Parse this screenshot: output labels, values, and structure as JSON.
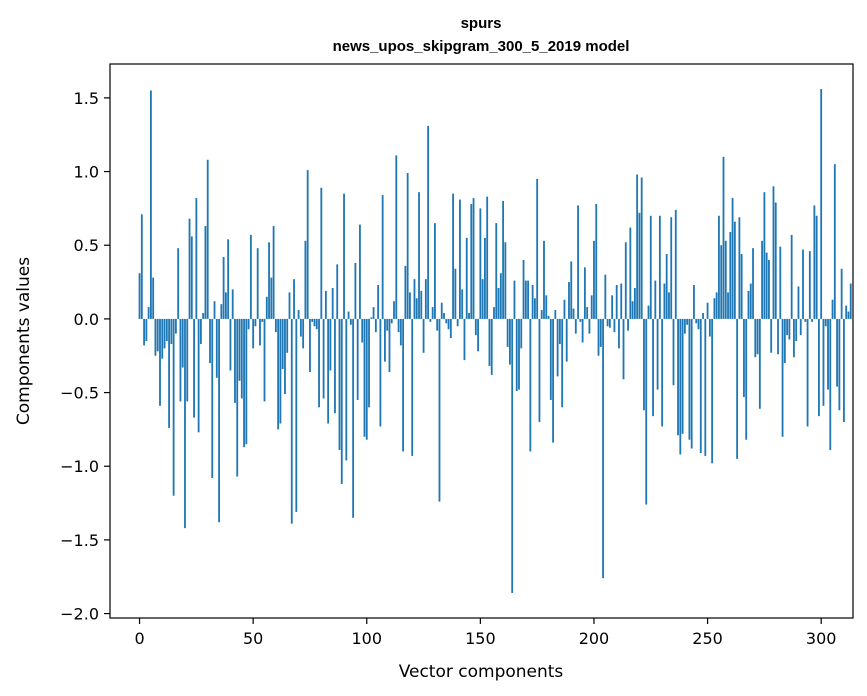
{
  "chart_data": {
    "type": "bar",
    "title": "spurs",
    "subtitle": "news_upos_skipgram_300_5_2019 model",
    "xlabel": "Vector components",
    "ylabel": "Components values",
    "xlim": [
      -13,
      314
    ],
    "ylim": [
      -2.03,
      1.73
    ],
    "xticks": [
      0,
      50,
      100,
      150,
      200,
      250,
      300
    ],
    "xtick_labels": [
      "0",
      "50",
      "100",
      "150",
      "200",
      "250",
      "300"
    ],
    "yticks": [
      -2.0,
      -1.5,
      -1.0,
      -0.5,
      0.0,
      0.5,
      1.0,
      1.5
    ],
    "ytick_labels": [
      "−2.0",
      "−1.5",
      "−1.0",
      "−0.5",
      "0.0",
      "0.5",
      "1.0",
      "1.5"
    ],
    "grid": false,
    "bar_color": "#1f77b4",
    "values": [
      0.31,
      0.71,
      -0.18,
      -0.15,
      0.08,
      1.55,
      0.28,
      -0.25,
      -0.22,
      -0.59,
      -0.27,
      -0.2,
      -0.15,
      -0.74,
      -0.17,
      -1.2,
      -0.1,
      0.48,
      -0.56,
      -0.33,
      -1.42,
      -0.56,
      0.68,
      0.56,
      -0.67,
      0.82,
      -0.77,
      -0.17,
      0.04,
      0.63,
      1.08,
      -0.3,
      -1.08,
      0.12,
      -0.4,
      -1.38,
      0.1,
      0.42,
      0.18,
      0.54,
      -0.35,
      0.2,
      -0.57,
      -1.07,
      -0.42,
      -0.54,
      -0.87,
      -0.85,
      -0.07,
      0.57,
      -0.2,
      -0.05,
      0.48,
      -0.18,
      -0.02,
      -0.56,
      0.15,
      0.52,
      0.28,
      0.63,
      -0.09,
      -0.75,
      -0.71,
      -0.34,
      -0.51,
      -0.23,
      0.18,
      -1.39,
      0.27,
      -1.31,
      0.06,
      -0.12,
      -0.2,
      0.53,
      1.01,
      -0.36,
      -0.02,
      -0.05,
      -0.07,
      -0.6,
      0.89,
      -0.54,
      0.19,
      -0.71,
      -0.35,
      0.21,
      -0.64,
      0.37,
      -0.89,
      -1.12,
      0.85,
      -0.96,
      0.05,
      -0.04,
      -1.35,
      0.38,
      -0.55,
      0.64,
      -0.16,
      -0.8,
      -0.82,
      -0.6,
      0.01,
      0.08,
      -0.09,
      0.23,
      -0.73,
      0.84,
      -0.29,
      -0.08,
      -0.36,
      -0.03,
      0.12,
      1.11,
      -0.09,
      -0.18,
      -0.9,
      0.36,
      0.99,
      0.18,
      -0.93,
      0.27,
      0.14,
      0.86,
      0.19,
      -0.23,
      0.27,
      1.31,
      -0.02,
      0.08,
      0.65,
      -0.08,
      -1.24,
      0.11,
      0.04,
      -0.03,
      -0.07,
      -0.13,
      0.85,
      0.34,
      -0.05,
      0.81,
      0.2,
      -0.28,
      0.55,
      0.04,
      0.78,
      0.82,
      -0.11,
      -0.22,
      0.75,
      0.27,
      0.55,
      0.83,
      -0.32,
      -0.38,
      0.08,
      0.65,
      0.21,
      0.31,
      0.8,
      0.52,
      -0.19,
      -0.31,
      -1.86,
      0.26,
      -0.49,
      -0.48,
      -0.2,
      0.4,
      0.26,
      0.26,
      -0.9,
      0.23,
      0.14,
      0.95,
      -0.7,
      0.06,
      0.53,
      0.16,
      0.02,
      -0.55,
      -0.84,
      0.06,
      -0.39,
      -0.17,
      -0.6,
      0.13,
      -0.29,
      0.25,
      0.39,
      0.07,
      -0.1,
      0.77,
      -0.02,
      -0.16,
      0.35,
      0.08,
      -0.1,
      0.16,
      0.53,
      0.78,
      -0.25,
      -0.19,
      -1.76,
      0.3,
      -0.05,
      -0.06,
      0.16,
      -0.09,
      0.23,
      -0.2,
      0.24,
      -0.41,
      0.52,
      -0.08,
      0.62,
      0.12,
      0.21,
      0.98,
      0.72,
      0.96,
      -0.62,
      -1.26,
      0.09,
      0.7,
      -0.66,
      0.26,
      -0.48,
      0.7,
      -0.73,
      0.24,
      0.44,
      0.18,
      0.69,
      -0.45,
      0.74,
      -0.79,
      -0.92,
      -0.78,
      -0.1,
      -0.04,
      -0.82,
      -0.88,
      0.23,
      -0.03,
      -0.07,
      -0.91,
      0.04,
      -0.93,
      0.11,
      -0.12,
      -0.98,
      0.14,
      0.18,
      0.7,
      0.5,
      1.1,
      0.53,
      0.18,
      0.59,
      0.82,
      0.66,
      -0.95,
      0.69,
      0.44,
      -0.53,
      -0.82,
      0.19,
      0.24,
      0.48,
      -0.26,
      -0.24,
      -0.61,
      0.53,
      0.86,
      0.45,
      0.4,
      -0.23,
      0.9,
      0.79,
      -0.24,
      0.49,
      -0.8,
      -0.3,
      -0.11,
      -0.14,
      0.57,
      -0.26,
      -0.15,
      0.22,
      -0.11,
      0.47,
      -0.02,
      -0.73,
      0.46,
      -0.02,
      0.77,
      0.7,
      -0.66,
      1.56,
      -0.59,
      -0.05,
      -0.48,
      -0.89,
      0.13,
      1.05,
      -0.46,
      -0.62,
      0.34,
      -0.7,
      0.09,
      0.05,
      0.24
    ]
  }
}
